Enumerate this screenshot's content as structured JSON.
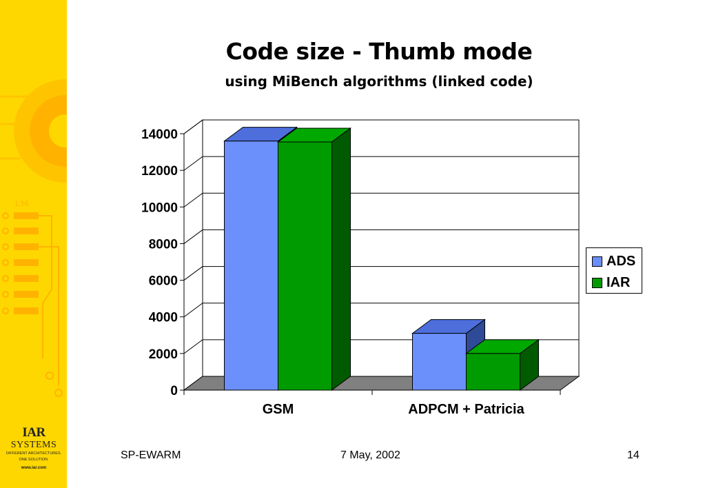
{
  "slide": {
    "title": "Code size - Thumb mode",
    "subtitle": "using MiBench algorithms (linked code)",
    "footer_left": "SP-EWARM",
    "footer_center": "7 May, 2002",
    "footer_right": "14"
  },
  "logo": {
    "brand": "IAR",
    "brand2": "SYSTEMS",
    "tagline_1": "DIFFERENT ARCHITECTURES.",
    "tagline_2": "ONE SOLUTION.",
    "website": "www.iar.com",
    "chip_label": "L36"
  },
  "colors": {
    "sidebar": "#ffd700",
    "ads_front": "#6b8ffb",
    "ads_top": "#4d6edb",
    "ads_side": "#2f4a96",
    "iar_front": "#009b00",
    "iar_top": "#00a800",
    "iar_side": "#005a00",
    "floor": "#808080"
  },
  "chart_data": {
    "type": "bar",
    "title": "Code size - Thumb mode",
    "subtitle": "using MiBench algorithms (linked code)",
    "categories": [
      "GSM",
      "ADPCM + Patricia"
    ],
    "series": [
      {
        "name": "ADS",
        "values": [
          13600,
          3100
        ]
      },
      {
        "name": "IAR",
        "values": [
          13550,
          2000
        ]
      }
    ],
    "ylim": [
      0,
      14000
    ],
    "yticks": [
      0,
      2000,
      4000,
      6000,
      8000,
      10000,
      12000,
      14000
    ],
    "grid": true,
    "legend": "right",
    "style": "3d"
  }
}
